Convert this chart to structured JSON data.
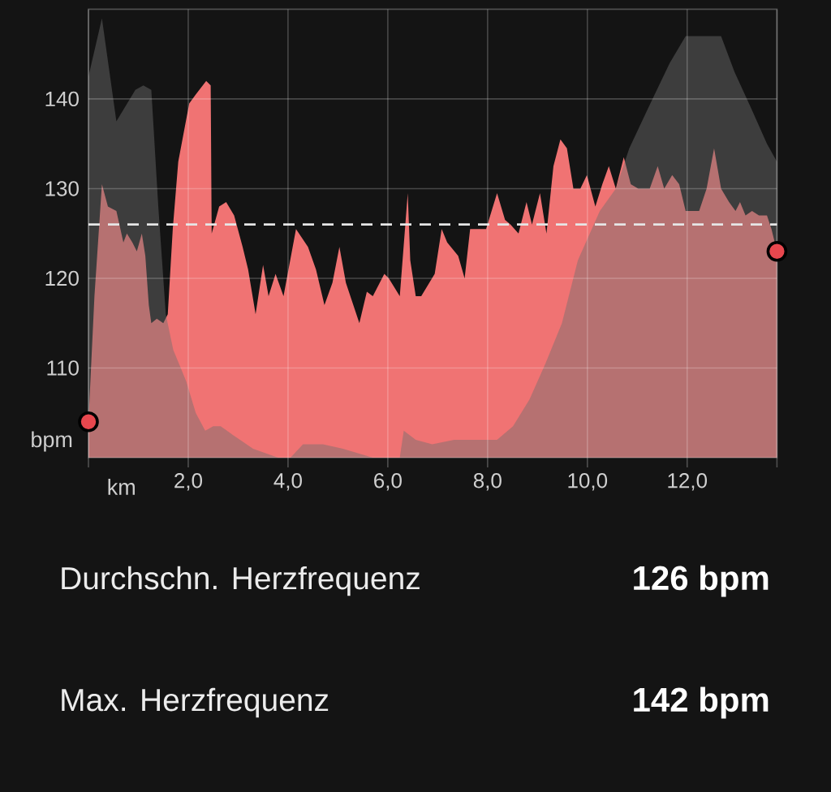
{
  "chart_data": {
    "type": "area",
    "xlabel": "km",
    "ylabel": "bpm",
    "xlim": [
      0,
      13.8
    ],
    "ylim": [
      100,
      150
    ],
    "xticks": [
      {
        "value": 0,
        "label": null
      },
      {
        "value": 2,
        "label": "2,0"
      },
      {
        "value": 4,
        "label": "4,0"
      },
      {
        "value": 6,
        "label": "6,0"
      },
      {
        "value": 8,
        "label": "8,0"
      },
      {
        "value": 10,
        "label": "10,0"
      },
      {
        "value": 12,
        "label": "12,0"
      },
      {
        "value": 13.8,
        "label": null
      }
    ],
    "yticks": [
      110,
      120,
      130,
      140
    ],
    "grid": true,
    "series": [
      {
        "color": "#f07373",
        "x": [
          0,
          0.12,
          0.27,
          0.39,
          0.56,
          0.7,
          0.77,
          0.88,
          0.97,
          1.07,
          1.14,
          1.21,
          1.26,
          1.37,
          1.5,
          1.59,
          1.69,
          1.8,
          2.02,
          2.15,
          2.36,
          2.45,
          2.47,
          2.62,
          2.76,
          2.92,
          3.09,
          3.2,
          3.35,
          3.5,
          3.61,
          3.75,
          3.91,
          4.16,
          4.4,
          4.56,
          4.73,
          4.89,
          5.03,
          5.16,
          5.43,
          5.58,
          5.7,
          5.93,
          6.02,
          6.24,
          6.4,
          6.45,
          6.56,
          6.67,
          6.94,
          7.08,
          7.19,
          7.41,
          7.54,
          7.65,
          7.97,
          8.19,
          8.35,
          8.46,
          8.62,
          8.78,
          8.89,
          9.05,
          9.18,
          9.32,
          9.46,
          9.59,
          9.72,
          9.86,
          9.99,
          10.16,
          10.3,
          10.43,
          10.57,
          10.73,
          10.87,
          11.02,
          11.25,
          11.41,
          11.54,
          11.7,
          11.84,
          11.97,
          12.24,
          12.39,
          12.54,
          12.68,
          12.84,
          12.97,
          13.06,
          13.17,
          13.3,
          13.44,
          13.6,
          13.69,
          13.8
        ],
        "values": [
          104,
          118,
          130.5,
          128,
          127.5,
          124,
          125,
          124,
          123,
          125,
          122.5,
          117,
          115,
          115.5,
          115,
          116,
          125.5,
          133,
          139.5,
          140.5,
          142,
          141.5,
          125,
          128,
          128.5,
          127,
          123.5,
          121,
          116,
          121.5,
          118,
          120.5,
          118,
          125.5,
          123.5,
          121,
          117,
          119.5,
          123.5,
          119.5,
          115,
          118.5,
          118,
          120.5,
          120,
          118,
          129.5,
          122,
          118,
          118,
          120.5,
          125.5,
          124,
          122.5,
          120,
          125.5,
          125.5,
          129.5,
          126.5,
          126,
          125,
          128.5,
          126,
          129.5,
          125,
          132.5,
          135.5,
          134.5,
          130,
          130,
          131.5,
          128,
          130.5,
          132.5,
          130,
          133.5,
          130.5,
          130,
          130,
          132.5,
          130,
          131.5,
          130.5,
          127.5,
          127.5,
          130,
          134.5,
          130,
          128.5,
          127.5,
          128.5,
          127,
          127.5,
          127,
          127,
          125.5,
          123
        ]
      },
      {
        "color": "#6e6e6e",
        "x": [
          0,
          0.27,
          0.56,
          0.94,
          1.1,
          1.26,
          1.4,
          1.55,
          1.7,
          1.85,
          1.96,
          2.15,
          2.34,
          2.5,
          2.65,
          2.9,
          3.3,
          3.8,
          4.05,
          4.3,
          4.7,
          5.1,
          5.7,
          6.24,
          6.32,
          6.56,
          6.89,
          7.33,
          7.65,
          8.19,
          8.51,
          8.84,
          9.16,
          9.49,
          9.81,
          10.25,
          10.57,
          10.84,
          11.22,
          11.65,
          11.97,
          12.4,
          12.68,
          12.95,
          13.28,
          13.6,
          13.8
        ],
        "values": [
          142.5,
          149,
          137.5,
          141,
          141.5,
          141,
          128,
          116,
          112,
          110,
          108.5,
          105,
          103,
          103.5,
          103.5,
          102.5,
          101,
          100,
          100,
          101.5,
          101.5,
          101,
          100,
          100,
          103,
          102,
          101.5,
          102,
          102,
          102,
          103.5,
          106.5,
          110.5,
          115,
          122,
          127.5,
          130,
          134.5,
          139,
          144,
          147,
          147,
          147,
          143,
          139,
          135,
          133
        ]
      },
      {
        "type": "scatter",
        "color": "#e8474e",
        "marker": "circle",
        "x": [
          0,
          13.8
        ],
        "values": [
          104,
          123
        ]
      }
    ],
    "ref_lines": [
      {
        "axis": "y",
        "value": 126,
        "color": "#e6e6e6",
        "line_style": "dashed"
      }
    ],
    "annotations": [
      "Durchschn. Herzfrequenz",
      "126 bpm",
      "Max. Herzfrequenz",
      "142 bpm"
    ]
  }
}
